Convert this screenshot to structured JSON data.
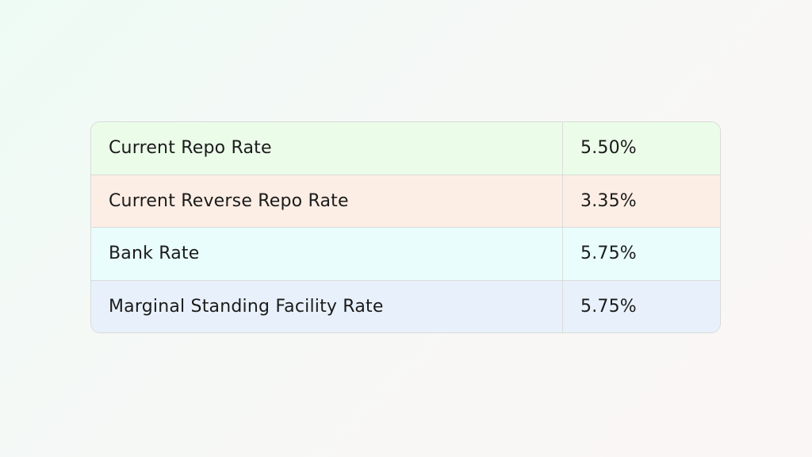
{
  "table": {
    "rows": [
      {
        "label": "Current Repo Rate",
        "value": "5.50%"
      },
      {
        "label": "Current Reverse Repo Rate",
        "value": "3.35%"
      },
      {
        "label": "Bank Rate",
        "value": "5.75%"
      },
      {
        "label": "Marginal Standing Facility Rate",
        "value": "5.75%"
      }
    ]
  },
  "colors": {
    "row_backgrounds": [
      "#ebfde9",
      "#fdeee5",
      "#e8fdfc",
      "#e8f1fb"
    ],
    "border": "#d9dbd9",
    "text": "#1b1b1b"
  }
}
